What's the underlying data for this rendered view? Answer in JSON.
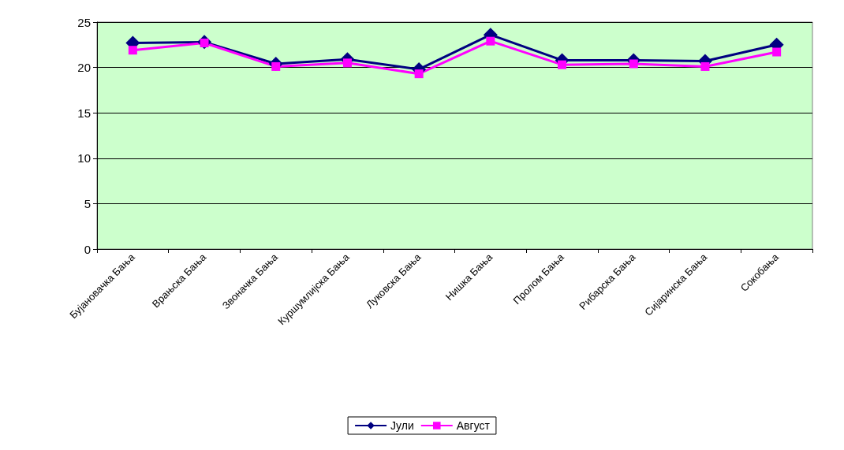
{
  "chart_data": {
    "type": "line",
    "categories": [
      "Бујановачка Бања",
      "Врањска Бања",
      "Звоначка Бања",
      "Куршумлијска Бања",
      "Луковска Бања",
      "Нишка Бања",
      "Пролом Бања",
      "Рибарска Бања",
      "Сијаринска Бања",
      "Сокобања"
    ],
    "series": [
      {
        "name": "Јули",
        "color": "#000080",
        "marker": "diamond",
        "values": [
          22.7,
          22.8,
          20.4,
          20.9,
          19.8,
          23.6,
          20.8,
          20.8,
          20.7,
          22.5
        ]
      },
      {
        "name": "Август",
        "color": "#ff00ff",
        "marker": "square",
        "values": [
          21.9,
          22.7,
          20.1,
          20.5,
          19.3,
          22.9,
          20.3,
          20.4,
          20.1,
          21.7
        ]
      }
    ],
    "ylim": [
      0,
      25
    ],
    "yticks": [
      0,
      5,
      10,
      15,
      20,
      25
    ],
    "grid": "y",
    "legend": "bottom",
    "line_style": "solid"
  }
}
